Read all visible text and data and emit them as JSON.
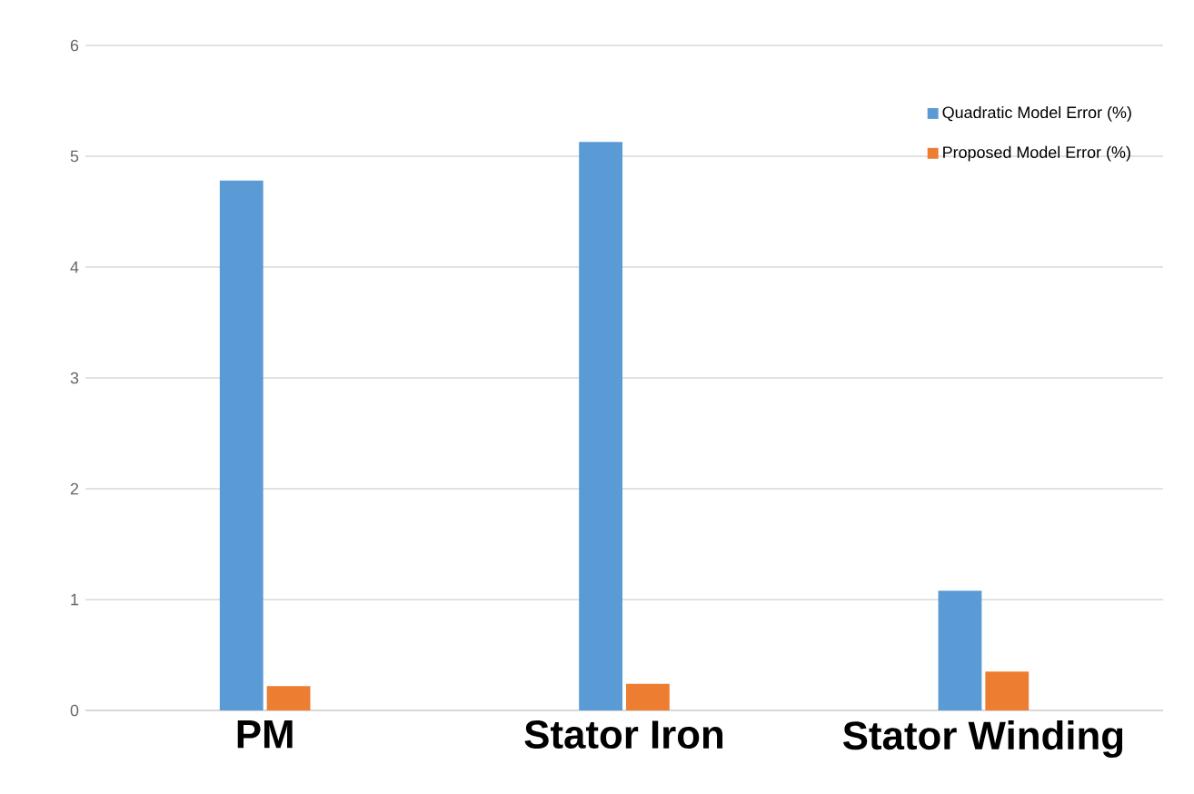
{
  "chart_data": {
    "type": "bar",
    "categories": [
      "PM",
      "Stator Iron",
      "Stator Winding"
    ],
    "series": [
      {
        "name": "Quadratic Model Error (%)",
        "color": "#5b9bd5",
        "values": [
          4.78,
          5.13,
          1.08
        ]
      },
      {
        "name": "Proposed Model Error (%)",
        "color": "#ed7d31",
        "values": [
          0.22,
          0.24,
          0.35
        ]
      }
    ],
    "ylim": [
      0,
      6
    ],
    "yticks": [
      0,
      1,
      2,
      3,
      4,
      5,
      6
    ],
    "grid": "y",
    "legend": "top right"
  }
}
